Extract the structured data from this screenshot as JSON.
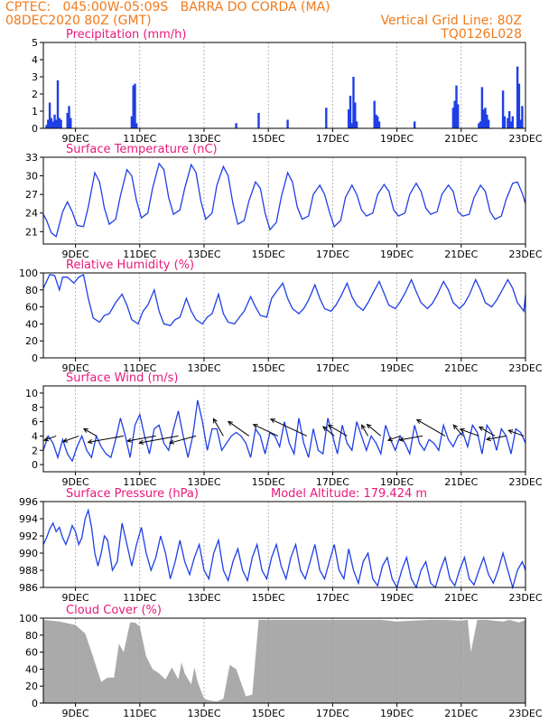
{
  "header": {
    "left_line1": "CPTEC:   045:00W-05:09S   BARRA DO CORDA (MA)",
    "left_line2": "08DEC2020 80Z (GMT)",
    "right_line2": "Vertical Grid Line: 80Z",
    "right_line3": "TQ0126L028"
  },
  "colors": {
    "header": "#f07a1a",
    "title": "#e8197c",
    "line": "#1f3fe6",
    "cloud": "#aaaaaa",
    "grid": "#999999"
  },
  "x_axis": {
    "start_day": 8.0,
    "end_day": 23.0,
    "ticks": [
      {
        "day": 9,
        "label": "9DEC"
      },
      {
        "day": 11,
        "label": "11DEC"
      },
      {
        "day": 13,
        "label": "13DEC"
      },
      {
        "day": 15,
        "label": "15DEC"
      },
      {
        "day": 17,
        "label": "17DEC"
      },
      {
        "day": 19,
        "label": "19DEC"
      },
      {
        "day": 21,
        "label": "21DEC"
      },
      {
        "day": 23,
        "label": "23DEC"
      }
    ]
  },
  "chart_data": [
    {
      "id": "precip",
      "type": "bar",
      "title": "Precipitation (mm/h)",
      "ylim": [
        0,
        5
      ],
      "yticks": [
        0,
        1,
        2,
        3,
        4,
        5
      ],
      "x": [
        8.1,
        8.15,
        8.2,
        8.25,
        8.3,
        8.35,
        8.4,
        8.45,
        8.5,
        8.55,
        8.75,
        8.8,
        8.85,
        10.75,
        10.8,
        10.85,
        10.9,
        14.0,
        14.7,
        15.6,
        16.8,
        17.5,
        17.55,
        17.6,
        17.65,
        17.7,
        17.75,
        18.3,
        18.35,
        18.4,
        18.45,
        19.55,
        20.75,
        20.8,
        20.85,
        20.9,
        21.55,
        21.6,
        21.65,
        21.7,
        21.75,
        21.8,
        21.85,
        22.3,
        22.35,
        22.45,
        22.5,
        22.55,
        22.6,
        22.75,
        22.8,
        22.85,
        22.9
      ],
      "values": [
        0.2,
        0.5,
        1.5,
        0.6,
        0.4,
        0.8,
        0.5,
        2.8,
        0.6,
        0.5,
        0.9,
        1.3,
        0.6,
        0.7,
        2.5,
        2.6,
        0.3,
        0.3,
        0.9,
        0.5,
        1.2,
        1.1,
        1.9,
        0.3,
        3.0,
        1.5,
        0.4,
        1.6,
        0.8,
        0.7,
        0.4,
        0.4,
        1.2,
        1.6,
        2.5,
        1.4,
        0.3,
        0.4,
        2.4,
        1.1,
        1.2,
        0.8,
        0.5,
        2.2,
        0.7,
        0.6,
        1.0,
        0.4,
        0.7,
        3.6,
        2.6,
        0.5,
        1.3
      ]
    },
    {
      "id": "temp",
      "type": "line",
      "title": "Surface Temperature (nC)",
      "ylim": [
        19,
        33
      ],
      "yticks": [
        21,
        24,
        27,
        30,
        33
      ],
      "x": [
        8.0,
        8.1,
        8.25,
        8.4,
        8.6,
        8.75,
        8.9,
        9.05,
        9.25,
        9.4,
        9.6,
        9.75,
        9.9,
        10.05,
        10.25,
        10.4,
        10.6,
        10.75,
        10.9,
        11.05,
        11.25,
        11.4,
        11.6,
        11.75,
        11.9,
        12.05,
        12.25,
        12.4,
        12.6,
        12.75,
        12.9,
        13.05,
        13.25,
        13.4,
        13.6,
        13.75,
        13.9,
        14.05,
        14.25,
        14.4,
        14.6,
        14.75,
        14.9,
        15.05,
        15.25,
        15.4,
        15.6,
        15.75,
        15.9,
        16.05,
        16.25,
        16.4,
        16.6,
        16.75,
        16.9,
        17.05,
        17.25,
        17.4,
        17.6,
        17.75,
        17.9,
        18.05,
        18.25,
        18.4,
        18.6,
        18.75,
        18.9,
        19.05,
        19.25,
        19.4,
        19.6,
        19.75,
        19.9,
        20.05,
        20.25,
        20.4,
        20.6,
        20.75,
        20.9,
        21.05,
        21.25,
        21.4,
        21.6,
        21.75,
        21.9,
        22.05,
        22.25,
        22.4,
        22.6,
        22.75,
        22.9,
        23.0
      ],
      "values": [
        23.8,
        22.8,
        20.8,
        20.2,
        24.2,
        25.8,
        24.2,
        22.0,
        21.8,
        25.0,
        30.5,
        29.0,
        24.8,
        22.2,
        23.0,
        26.8,
        31.0,
        30.0,
        26.0,
        23.2,
        24.0,
        28.0,
        32.0,
        31.0,
        26.5,
        23.8,
        24.5,
        28.0,
        31.8,
        30.5,
        26.0,
        23.0,
        24.0,
        28.5,
        31.5,
        30.0,
        25.5,
        22.2,
        22.8,
        26.0,
        29.0,
        28.0,
        24.0,
        21.3,
        22.5,
        26.5,
        30.5,
        29.0,
        25.0,
        23.0,
        23.5,
        27.0,
        28.5,
        27.0,
        24.2,
        21.8,
        22.8,
        26.5,
        28.5,
        27.0,
        24.5,
        23.5,
        24.0,
        27.0,
        28.6,
        27.5,
        24.5,
        23.5,
        24.0,
        27.0,
        28.8,
        27.5,
        24.8,
        23.8,
        24.2,
        27.0,
        28.5,
        27.5,
        24.2,
        23.5,
        23.8,
        26.5,
        28.5,
        27.5,
        24.2,
        23.0,
        23.5,
        26.2,
        28.8,
        29.0,
        27.2,
        25.5
      ]
    },
    {
      "id": "rh",
      "type": "line",
      "title": "Relative Humidity (%)",
      "ylim": [
        0,
        100
      ],
      "yticks": [
        0,
        20,
        40,
        60,
        80,
        100
      ],
      "x": [
        8.0,
        8.2,
        8.35,
        8.5,
        8.6,
        8.75,
        8.95,
        9.1,
        9.25,
        9.4,
        9.55,
        9.75,
        9.9,
        10.05,
        10.25,
        10.45,
        10.6,
        10.75,
        10.95,
        11.1,
        11.25,
        11.45,
        11.6,
        11.75,
        11.95,
        12.1,
        12.25,
        12.45,
        12.6,
        12.75,
        12.95,
        13.1,
        13.25,
        13.45,
        13.6,
        13.75,
        13.95,
        14.1,
        14.25,
        14.45,
        14.6,
        14.75,
        14.95,
        15.1,
        15.25,
        15.45,
        15.6,
        15.75,
        15.95,
        16.1,
        16.25,
        16.45,
        16.6,
        16.75,
        16.95,
        17.1,
        17.25,
        17.45,
        17.6,
        17.75,
        17.95,
        18.1,
        18.25,
        18.45,
        18.6,
        18.75,
        18.95,
        19.1,
        19.25,
        19.45,
        19.6,
        19.75,
        19.95,
        20.1,
        20.25,
        20.45,
        20.6,
        20.75,
        20.95,
        21.1,
        21.25,
        21.45,
        21.6,
        21.75,
        21.95,
        22.1,
        22.25,
        22.45,
        22.6,
        22.75,
        22.95,
        23.0
      ],
      "values": [
        82,
        98,
        97,
        80,
        95,
        95,
        88,
        95,
        98,
        70,
        47,
        42,
        50,
        52,
        65,
        75,
        62,
        45,
        40,
        55,
        62,
        80,
        55,
        40,
        38,
        45,
        48,
        70,
        55,
        45,
        40,
        48,
        52,
        75,
        52,
        42,
        40,
        48,
        55,
        72,
        60,
        50,
        48,
        70,
        78,
        88,
        70,
        58,
        52,
        58,
        68,
        86,
        70,
        58,
        55,
        62,
        72,
        88,
        72,
        62,
        56,
        65,
        76,
        90,
        76,
        62,
        58,
        66,
        76,
        92,
        78,
        65,
        58,
        64,
        74,
        90,
        80,
        65,
        58,
        64,
        74,
        92,
        80,
        65,
        60,
        68,
        78,
        92,
        82,
        65,
        55,
        74
      ]
    },
    {
      "id": "wind",
      "type": "line",
      "title": "Surface Wind (m/s)",
      "ylim": [
        -1,
        11
      ],
      "yticks": [
        0,
        2,
        4,
        6,
        8,
        10
      ],
      "x": [
        8.0,
        8.15,
        8.3,
        8.45,
        8.6,
        8.75,
        8.9,
        9.05,
        9.2,
        9.35,
        9.5,
        9.65,
        9.8,
        9.95,
        10.1,
        10.25,
        10.4,
        10.55,
        10.7,
        10.85,
        11.0,
        11.15,
        11.3,
        11.45,
        11.6,
        11.75,
        11.9,
        12.05,
        12.2,
        12.35,
        12.5,
        12.65,
        12.8,
        12.95,
        13.1,
        13.25,
        13.4,
        13.55,
        13.7,
        13.85,
        14.0,
        14.15,
        14.3,
        14.45,
        14.6,
        14.75,
        14.9,
        15.05,
        15.2,
        15.35,
        15.5,
        15.65,
        15.8,
        15.95,
        16.1,
        16.25,
        16.4,
        16.55,
        16.7,
        16.85,
        17.0,
        17.15,
        17.3,
        17.45,
        17.6,
        17.75,
        17.9,
        18.05,
        18.2,
        18.35,
        18.5,
        18.65,
        18.8,
        18.95,
        19.1,
        19.25,
        19.4,
        19.55,
        19.7,
        19.85,
        20.0,
        20.15,
        20.3,
        20.45,
        20.6,
        20.75,
        20.9,
        21.05,
        21.2,
        21.35,
        21.5,
        21.65,
        21.8,
        21.95,
        22.1,
        22.25,
        22.4,
        22.55,
        22.7,
        22.85,
        23.0
      ],
      "values": [
        2.0,
        4.0,
        3.0,
        1.0,
        3.5,
        1.5,
        0.5,
        2.5,
        4.0,
        2.0,
        1.0,
        4.0,
        2.5,
        1.5,
        1.0,
        3.5,
        6.5,
        4.0,
        1.0,
        5.5,
        7.0,
        4.0,
        1.5,
        5.0,
        5.5,
        3.0,
        2.0,
        5.0,
        7.5,
        4.0,
        1.0,
        4.0,
        9.0,
        6.0,
        2.0,
        5.0,
        5.0,
        2.0,
        3.0,
        4.0,
        4.5,
        4.0,
        3.0,
        1.0,
        5.0,
        4.0,
        1.5,
        4.5,
        4.0,
        2.5,
        6.0,
        3.0,
        1.5,
        6.5,
        3.0,
        1.0,
        5.0,
        2.0,
        1.5,
        6.5,
        4.0,
        1.5,
        5.5,
        3.0,
        2.0,
        6.0,
        4.0,
        2.0,
        4.0,
        3.0,
        1.5,
        5.5,
        3.5,
        2.0,
        4.0,
        3.0,
        1.5,
        5.5,
        3.0,
        2.0,
        3.5,
        3.0,
        2.0,
        5.5,
        3.5,
        2.5,
        4.0,
        4.5,
        2.5,
        5.5,
        4.5,
        1.5,
        5.5,
        4.5,
        2.0,
        5.0,
        4.0,
        1.5,
        5.0,
        4.5,
        3.0
      ],
      "arrows": [
        {
          "day": 8.4,
          "len": 14,
          "angle": 200
        },
        {
          "day": 9.1,
          "len": 18,
          "angle": 200
        },
        {
          "day": 9.65,
          "len": 16,
          "angle": 150
        },
        {
          "day": 10.5,
          "len": 40,
          "angle": 190
        },
        {
          "day": 11.5,
          "len": 32,
          "angle": 190
        },
        {
          "day": 12.2,
          "len": 44,
          "angle": 190
        },
        {
          "day": 12.75,
          "len": 30,
          "angle": 195
        },
        {
          "day": 13.6,
          "len": 22,
          "angle": 120
        },
        {
          "day": 14.4,
          "len": 28,
          "angle": 145
        },
        {
          "day": 15.3,
          "len": 30,
          "angle": 155
        },
        {
          "day": 16.2,
          "len": 44,
          "angle": 155
        },
        {
          "day": 17.05,
          "len": 16,
          "angle": 140
        },
        {
          "day": 17.45,
          "len": 24,
          "angle": 150
        },
        {
          "day": 18.1,
          "len": 14,
          "angle": 120
        },
        {
          "day": 18.5,
          "len": 20,
          "angle": 140
        },
        {
          "day": 19.1,
          "len": 14,
          "angle": 200
        },
        {
          "day": 19.8,
          "len": 26,
          "angle": 190
        },
        {
          "day": 20.5,
          "len": 36,
          "angle": 150
        },
        {
          "day": 21.05,
          "len": 16,
          "angle": 130
        },
        {
          "day": 21.55,
          "len": 22,
          "angle": 160
        },
        {
          "day": 22.05,
          "len": 20,
          "angle": 150
        },
        {
          "day": 22.4,
          "len": 22,
          "angle": 190
        },
        {
          "day": 22.95,
          "len": 18,
          "angle": 160
        }
      ]
    },
    {
      "id": "pressure",
      "type": "line",
      "title": "Surface Pressure (hPa)",
      "annotation": "Model Altitude: 179.424 m",
      "ylim": [
        986,
        996
      ],
      "yticks": [
        986,
        988,
        990,
        992,
        994,
        996
      ],
      "x": [
        8.0,
        8.1,
        8.2,
        8.3,
        8.4,
        8.5,
        8.6,
        8.7,
        8.8,
        8.9,
        9.0,
        9.1,
        9.2,
        9.3,
        9.4,
        9.5,
        9.6,
        9.7,
        9.8,
        9.9,
        10.0,
        10.15,
        10.3,
        10.45,
        10.6,
        10.75,
        10.9,
        11.05,
        11.2,
        11.35,
        11.5,
        11.65,
        11.8,
        11.95,
        12.1,
        12.25,
        12.4,
        12.55,
        12.7,
        12.85,
        13.0,
        13.15,
        13.3,
        13.45,
        13.6,
        13.75,
        13.9,
        14.05,
        14.2,
        14.35,
        14.5,
        14.65,
        14.8,
        14.95,
        15.1,
        15.25,
        15.4,
        15.55,
        15.7,
        15.85,
        16.0,
        16.15,
        16.3,
        16.45,
        16.6,
        16.75,
        16.9,
        17.05,
        17.2,
        17.35,
        17.5,
        17.65,
        17.8,
        17.95,
        18.1,
        18.25,
        18.4,
        18.55,
        18.7,
        18.85,
        19.0,
        19.15,
        19.3,
        19.45,
        19.6,
        19.75,
        19.9,
        20.05,
        20.2,
        20.35,
        20.5,
        20.65,
        20.8,
        20.95,
        21.1,
        21.25,
        21.4,
        21.55,
        21.7,
        21.85,
        22.0,
        22.15,
        22.3,
        22.45,
        22.6,
        22.75,
        22.9,
        23.0
      ],
      "values": [
        991.0,
        991.8,
        992.8,
        993.5,
        992.5,
        993.0,
        991.8,
        991.0,
        992.0,
        993.2,
        992.5,
        991.0,
        991.8,
        994.0,
        995.0,
        993.0,
        990.0,
        988.5,
        990.0,
        992.0,
        991.5,
        988.0,
        989.0,
        993.5,
        991.0,
        988.5,
        991.0,
        993.0,
        990.0,
        988.0,
        989.5,
        992.0,
        990.0,
        987.0,
        989.0,
        991.5,
        989.0,
        987.5,
        989.5,
        991.0,
        988.0,
        987.0,
        990.0,
        991.5,
        988.0,
        986.8,
        989.0,
        990.5,
        988.0,
        986.8,
        989.5,
        991.0,
        988.0,
        987.0,
        989.5,
        991.0,
        988.5,
        987.0,
        989.5,
        991.0,
        988.0,
        987.0,
        989.0,
        991.0,
        988.0,
        987.0,
        989.0,
        991.0,
        988.0,
        987.0,
        990.5,
        988.0,
        986.5,
        989.0,
        990.0,
        987.0,
        986.2,
        988.5,
        989.5,
        987.0,
        986.0,
        988.0,
        989.5,
        987.0,
        986.0,
        988.0,
        989.0,
        986.5,
        986.0,
        988.0,
        989.5,
        987.0,
        986.2,
        988.0,
        989.5,
        987.0,
        986.3,
        988.0,
        989.5,
        987.5,
        986.5,
        988.0,
        990.0,
        988.0,
        986.0,
        988.0,
        989.0,
        988.0
      ]
    },
    {
      "id": "cloud",
      "type": "area",
      "title": "Cloud Cover (%)",
      "ylim": [
        0,
        100
      ],
      "yticks": [
        0,
        20,
        40,
        60,
        80,
        100
      ],
      "x": [
        8.0,
        8.5,
        9.0,
        9.3,
        9.5,
        9.8,
        10.0,
        10.2,
        10.35,
        10.5,
        10.7,
        10.85,
        11.0,
        11.2,
        11.4,
        11.6,
        11.8,
        12.0,
        12.2,
        12.3,
        12.4,
        12.6,
        12.7,
        12.8,
        13.0,
        13.2,
        13.4,
        13.6,
        13.8,
        14.0,
        14.3,
        14.5,
        14.7,
        14.8,
        15.0,
        15.5,
        16.0,
        16.5,
        17.0,
        17.5,
        18.0,
        18.5,
        19.0,
        19.5,
        20.0,
        20.5,
        21.0,
        21.2,
        21.3,
        21.5,
        21.8,
        22.0,
        22.3,
        22.5,
        22.8,
        23.0
      ],
      "values": [
        98,
        96,
        92,
        82,
        60,
        25,
        30,
        30,
        70,
        60,
        95,
        95,
        90,
        55,
        40,
        35,
        28,
        42,
        28,
        48,
        35,
        22,
        42,
        25,
        5,
        3,
        2,
        5,
        45,
        40,
        8,
        10,
        98,
        98,
        98,
        98,
        98,
        98,
        98,
        98,
        98,
        98,
        96,
        97,
        98,
        98,
        97,
        98,
        60,
        98,
        98,
        97,
        96,
        98,
        95,
        98
      ]
    }
  ]
}
